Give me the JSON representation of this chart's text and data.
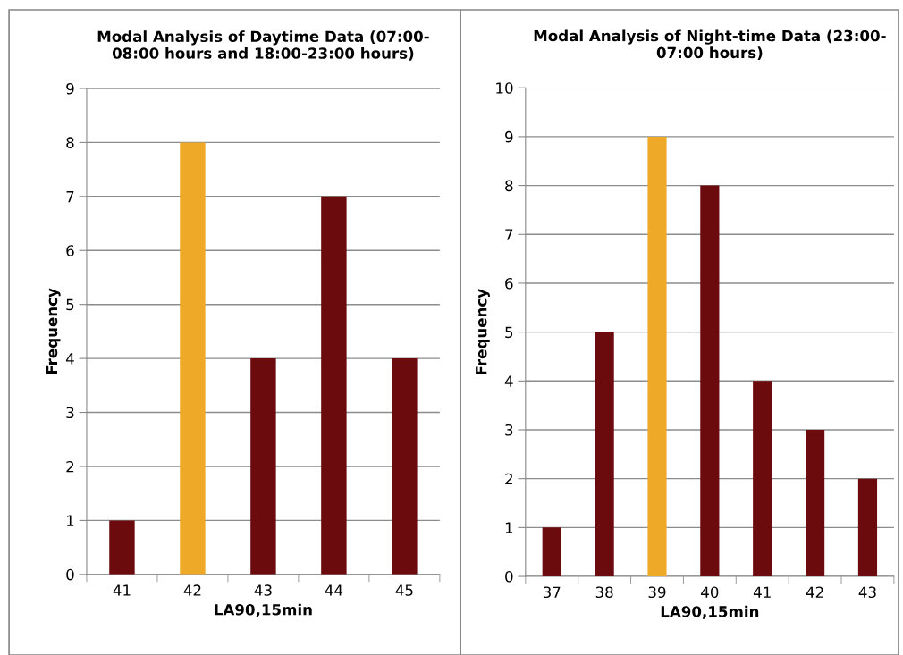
{
  "chart_data": [
    {
      "type": "bar",
      "title": "Modal Analysis of Daytime Data (07:00-\n08:00 hours and 18:00-23:00 hours)",
      "xlabel": "LA90,15min",
      "ylabel": "Frequency",
      "categories": [
        "41",
        "42",
        "43",
        "44",
        "45"
      ],
      "values": [
        1,
        8,
        4,
        7,
        4
      ],
      "colors": [
        "#6b0b0d",
        "#eea929",
        "#6b0b0d",
        "#6b0b0d",
        "#6b0b0d"
      ],
      "ylim": [
        0,
        9
      ],
      "yticks": [
        0,
        1,
        2,
        3,
        4,
        5,
        6,
        7,
        8,
        9
      ],
      "grid": "y",
      "legend": false
    },
    {
      "type": "bar",
      "title": "Modal Analysis of Night-time Data (23:00-\n07:00 hours)",
      "xlabel": "LA90,15min",
      "ylabel": "Frequency",
      "categories": [
        "37",
        "38",
        "39",
        "40",
        "41",
        "42",
        "43"
      ],
      "values": [
        1,
        5,
        9,
        8,
        4,
        3,
        2
      ],
      "colors": [
        "#6b0b0d",
        "#6b0b0d",
        "#eea929",
        "#6b0b0d",
        "#6b0b0d",
        "#6b0b0d",
        "#6b0b0d"
      ],
      "ylim": [
        0,
        10
      ],
      "yticks": [
        0,
        1,
        2,
        3,
        4,
        5,
        6,
        7,
        8,
        9,
        10
      ],
      "grid": "y",
      "legend": false
    }
  ]
}
